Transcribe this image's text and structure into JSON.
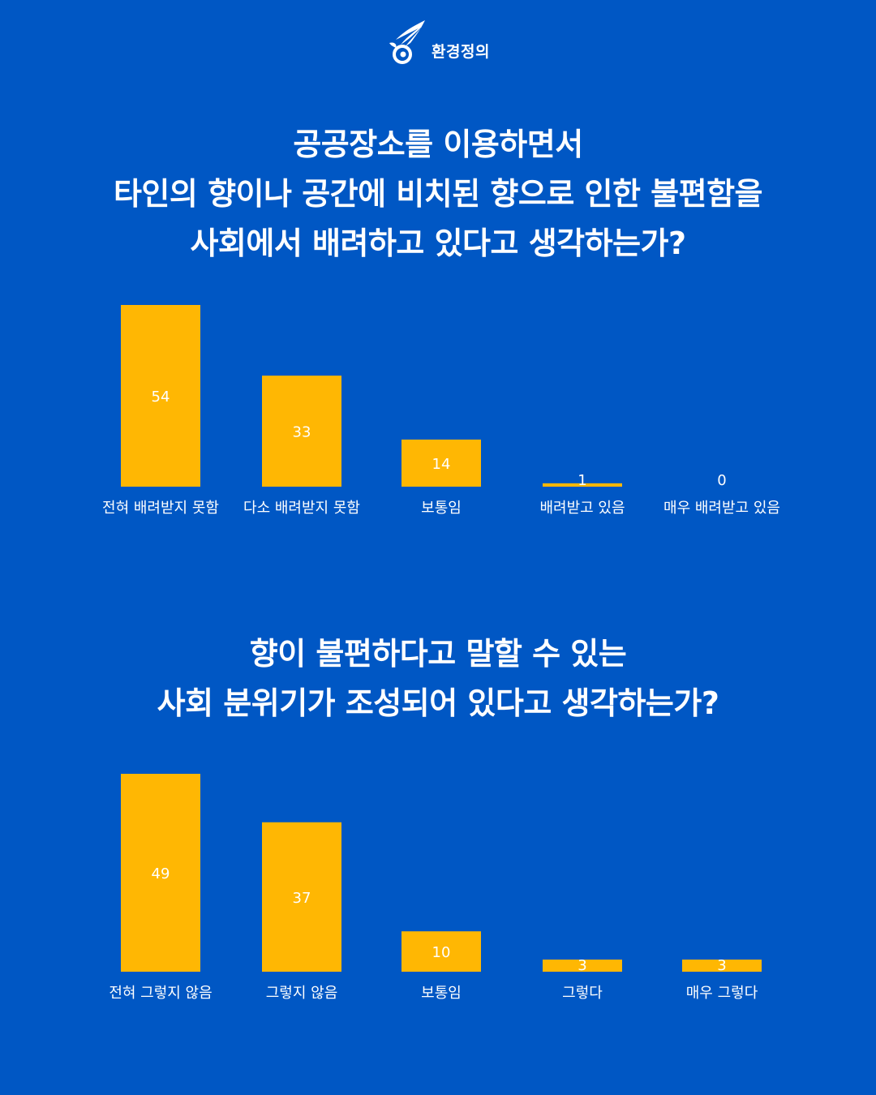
{
  "brand": {
    "name": "환경정의",
    "logo_icon": "eagle-logo-icon"
  },
  "colors": {
    "background": "#0057c4",
    "bar": "#ffb703",
    "text": "#ffffff"
  },
  "questions": [
    {
      "lines": [
        "공공장소를 이용하면서",
        "타인의 향이나 공간에 비치된 향으로 인한 불편함을",
        "사회에서 배려하고 있다고 생각하는가?"
      ]
    },
    {
      "lines": [
        "향이 불편하다고 말할 수 있는",
        "사회 분위기가 조성되어 있다고 생각하는가?"
      ]
    }
  ],
  "chart_data": [
    {
      "type": "bar",
      "categories": [
        "전혀 배려받지 못함",
        "다소 배려받지 못함",
        "보통임",
        "배려받고 있음",
        "매우 배려받고 있음"
      ],
      "values": [
        54,
        33,
        14,
        1,
        0
      ],
      "data_labels": [
        "54",
        "33",
        "14",
        "1",
        "0"
      ],
      "ylim": [
        0,
        54
      ],
      "grid": false,
      "legend": "none"
    },
    {
      "type": "bar",
      "categories": [
        "전혀 그렇지 않음",
        "그렇지 않음",
        "보통임",
        "그렇다",
        "매우 그렇다"
      ],
      "values": [
        49,
        37,
        10,
        3,
        3
      ],
      "data_labels": [
        "49",
        "37",
        "10",
        "3",
        "3"
      ],
      "ylim": [
        0,
        49
      ],
      "grid": false,
      "legend": "none"
    }
  ]
}
